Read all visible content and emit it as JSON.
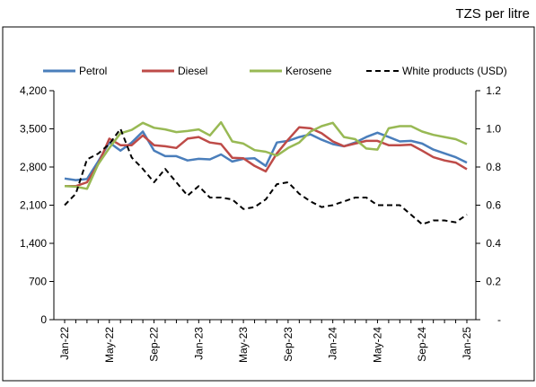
{
  "chart_data": {
    "type": "line",
    "title": "TZS per litre",
    "categories": [
      "Jan-22",
      null,
      null,
      null,
      "May-22",
      null,
      null,
      null,
      "Sep-22",
      null,
      null,
      null,
      "Jan-23",
      null,
      null,
      null,
      "May-23",
      null,
      null,
      null,
      "Sep-23",
      null,
      null,
      null,
      "Jan-24",
      null,
      null,
      null,
      "May-24",
      null,
      null,
      null,
      "Sep-24",
      null,
      null,
      null,
      "Jan-25"
    ],
    "series": [
      {
        "name": "Petrol",
        "color": "#4a7ebb",
        "dash": false,
        "values": [
          2590,
          2560,
          2580,
          2900,
          3250,
          3100,
          3250,
          3450,
          3100,
          3000,
          3000,
          2920,
          2950,
          2940,
          3030,
          2900,
          2950,
          2960,
          2820,
          3250,
          3280,
          3350,
          3400,
          3300,
          3220,
          3180,
          3250,
          3350,
          3430,
          3350,
          3270,
          3280,
          3230,
          3120,
          3050,
          2980,
          2880
        ]
      },
      {
        "name": "Diesel",
        "color": "#be4b48",
        "dash": false,
        "values": [
          2450,
          2450,
          2520,
          2850,
          3320,
          3200,
          3200,
          3380,
          3200,
          3180,
          3150,
          3320,
          3350,
          3250,
          3220,
          2970,
          2960,
          2820,
          2720,
          3050,
          3300,
          3530,
          3510,
          3420,
          3270,
          3180,
          3230,
          3280,
          3280,
          3200,
          3200,
          3210,
          3100,
          2980,
          2920,
          2880,
          2760
        ]
      },
      {
        "name": "Kerosene",
        "color": "#98b954",
        "dash": false,
        "values": [
          2450,
          2440,
          2400,
          2850,
          3150,
          3420,
          3480,
          3610,
          3520,
          3490,
          3440,
          3460,
          3490,
          3380,
          3620,
          3270,
          3230,
          3110,
          3080,
          3010,
          3150,
          3250,
          3450,
          3550,
          3610,
          3350,
          3310,
          3140,
          3120,
          3510,
          3550,
          3550,
          3450,
          3390,
          3350,
          3310,
          3220
        ]
      },
      {
        "name": "White products (USD)",
        "color": "#000000",
        "dash": true,
        "axis": "y2",
        "values": [
          0.6,
          0.66,
          0.84,
          0.87,
          0.92,
          1.0,
          0.85,
          0.79,
          0.72,
          0.79,
          0.72,
          0.65,
          0.7,
          0.64,
          0.64,
          0.63,
          0.58,
          0.59,
          0.63,
          0.71,
          0.72,
          0.66,
          0.62,
          0.59,
          0.6,
          0.62,
          0.64,
          0.64,
          0.6,
          0.6,
          0.6,
          0.55,
          0.5,
          0.52,
          0.52,
          0.51,
          0.55
        ]
      }
    ],
    "ylim": [
      0,
      4200
    ],
    "yticks": [
      0,
      700,
      {
        "value": 1400,
        "label": "1,400"
      },
      {
        "value": 2100,
        "label": "2,100"
      },
      {
        "value": 2800,
        "label": "2,800"
      },
      {
        "value": 3500,
        "label": "3,500"
      },
      {
        "value": 4200,
        "label": "4,200"
      }
    ],
    "y2lim": [
      0,
      1.2
    ],
    "y2ticks": [
      {
        "value": 0,
        "label": "-"
      },
      0.2,
      0.4,
      0.6,
      0.8,
      {
        "value": 1,
        "label": "1.0"
      },
      1.2
    ],
    "legend": "top"
  }
}
